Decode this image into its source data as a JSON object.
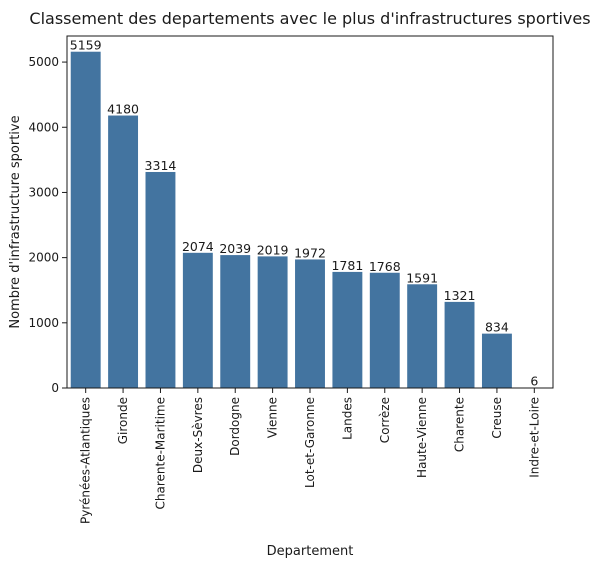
{
  "chart_data": {
    "type": "bar",
    "title": "Classement des departements avec le plus d'infrastructures sportives",
    "xlabel": "Departement",
    "ylabel": "Nombre d'infrastructure sportive",
    "categories": [
      "Pyrénées-Atlantiques",
      "Gironde",
      "Charente-Maritime",
      "Deux-Sèvres",
      "Dordogne",
      "Vienne",
      "Lot-et-Garonne",
      "Landes",
      "Corrèze",
      "Haute-Vienne",
      "Charente",
      "Creuse",
      "Indre-et-Loire"
    ],
    "values": [
      5159,
      4180,
      3314,
      2074,
      2039,
      2019,
      1972,
      1781,
      1768,
      1591,
      1321,
      834,
      6
    ],
    "ylim": [
      0,
      5400
    ],
    "yticks": [
      0,
      1000,
      2000,
      3000,
      4000,
      5000
    ],
    "grid": false,
    "legend": "none",
    "bar_color": "#4374a0"
  }
}
